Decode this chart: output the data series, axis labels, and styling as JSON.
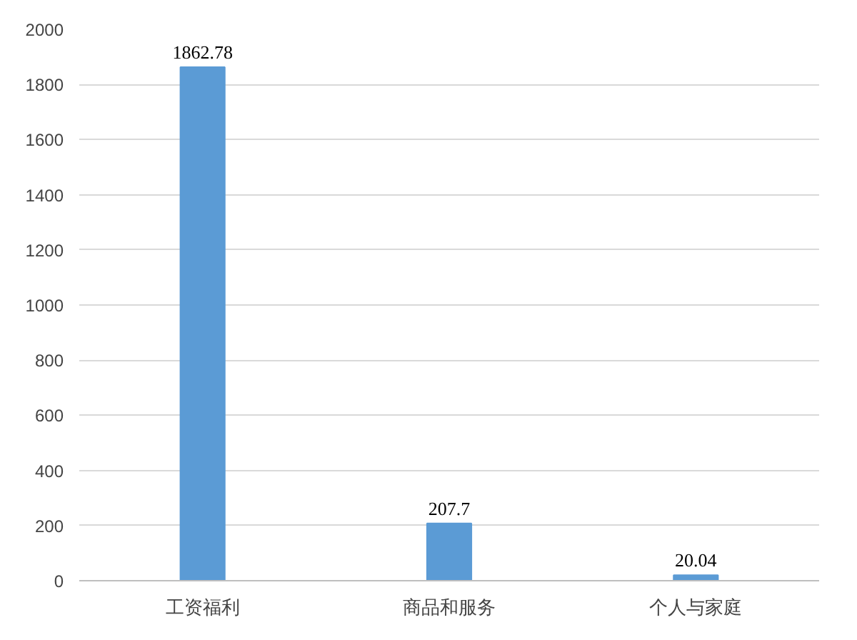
{
  "chart_data": {
    "type": "bar",
    "categories": [
      "工资福利",
      "商品和服务",
      "个人与家庭"
    ],
    "values": [
      1862.78,
      207.7,
      20.04
    ],
    "color": "#5b9bd5",
    "ylim": [
      0,
      2000
    ],
    "yticks": [
      0,
      200,
      400,
      600,
      800,
      1000,
      1200,
      1400,
      1600,
      1800,
      2000
    ],
    "grid": "y",
    "data_labels": true
  }
}
